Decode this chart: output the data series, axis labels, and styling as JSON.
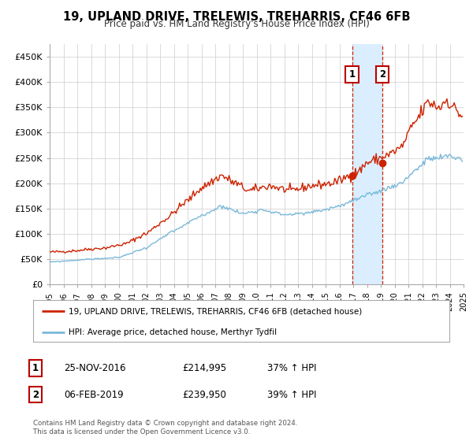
{
  "title": "19, UPLAND DRIVE, TRELEWIS, TREHARRIS, CF46 6FB",
  "subtitle": "Price paid vs. HM Land Registry's House Price Index (HPI)",
  "hpi_label": "HPI: Average price, detached house, Merthyr Tydfil",
  "property_label": "19, UPLAND DRIVE, TRELEWIS, TREHARRIS, CF46 6FB (detached house)",
  "sale1_date": "25-NOV-2016",
  "sale1_price": "£214,995",
  "sale1_hpi": "37% ↑ HPI",
  "sale2_date": "06-FEB-2019",
  "sale2_price": "£239,950",
  "sale2_hpi": "39% ↑ HPI",
  "sale1_x": 2016.92,
  "sale2_x": 2019.1,
  "sale1_y": 214995,
  "sale2_y": 239950,
  "hpi_color": "#7ab8d9",
  "property_color": "#cc2200",
  "highlight_color": "#daeeff",
  "yticks": [
    0,
    50000,
    100000,
    150000,
    200000,
    250000,
    300000,
    350000,
    400000,
    450000
  ],
  "ytick_labels": [
    "£0",
    "£50K",
    "£100K",
    "£150K",
    "£200K",
    "£250K",
    "£300K",
    "£350K",
    "£400K",
    "£450K"
  ],
  "xlim": [
    1995,
    2025
  ],
  "ylim": [
    0,
    475000
  ],
  "footer": "Contains HM Land Registry data © Crown copyright and database right 2024.\nThis data is licensed under the Open Government Licence v3.0.",
  "background_color": "#ffffff",
  "grid_color": "#cccccc"
}
